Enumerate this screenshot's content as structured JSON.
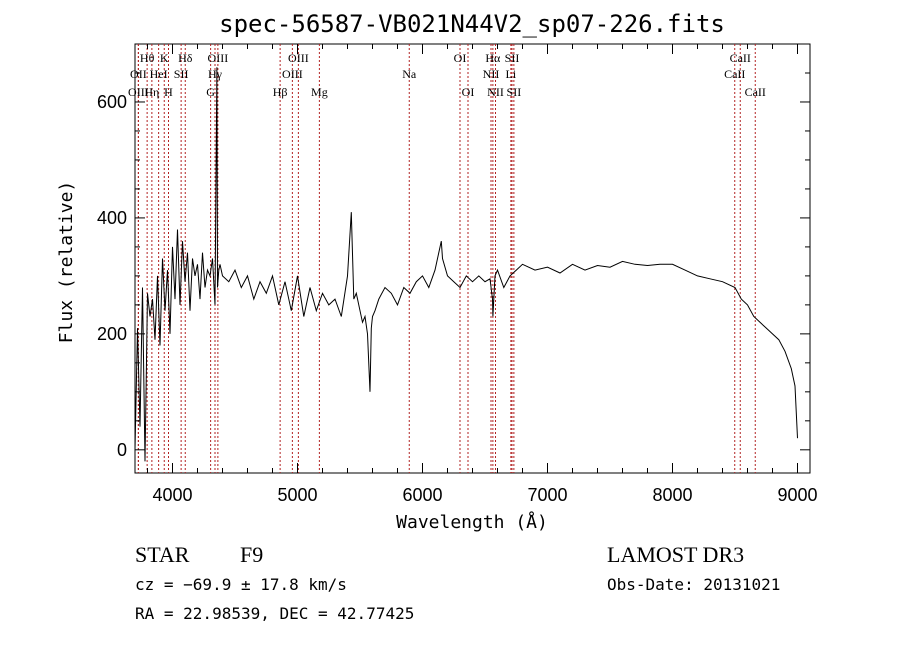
{
  "chart_data": {
    "type": "line",
    "title": "spec-56587-VB021N44V2_sp07-226.fits",
    "xlabel": "Wavelength (Å)",
    "ylabel": "Flux (relative)",
    "xlim": [
      3700,
      9100
    ],
    "ylim": [
      -40,
      700
    ],
    "x_ticks": [
      4000,
      5000,
      6000,
      7000,
      8000,
      9000
    ],
    "y_ticks": [
      0,
      200,
      400,
      600
    ],
    "grid": false,
    "series": [
      {
        "x": [
          3700,
          3720,
          3740,
          3760,
          3780,
          3800,
          3820,
          3840,
          3860,
          3880,
          3900,
          3920,
          3940,
          3960,
          3980,
          4000,
          4020,
          4040,
          4060,
          4080,
          4100,
          4120,
          4140,
          4160,
          4180,
          4200,
          4220,
          4240,
          4260,
          4280,
          4300,
          4320,
          4340,
          4355,
          4360,
          4370,
          4380,
          4400,
          4450,
          4500,
          4550,
          4600,
          4650,
          4700,
          4750,
          4800,
          4850,
          4900,
          4950,
          5000,
          5050,
          5100,
          5150,
          5200,
          5250,
          5300,
          5350,
          5400,
          5430,
          5450,
          5470,
          5500,
          5520,
          5540,
          5560,
          5580,
          5590,
          5600,
          5620,
          5650,
          5700,
          5750,
          5800,
          5850,
          5900,
          5950,
          6000,
          6050,
          6100,
          6150,
          6160,
          6200,
          6250,
          6300,
          6350,
          6400,
          6450,
          6500,
          6540,
          6560,
          6563,
          6580,
          6600,
          6650,
          6700,
          6750,
          6800,
          6900,
          7000,
          7100,
          7200,
          7300,
          7400,
          7500,
          7600,
          7700,
          7800,
          7900,
          8000,
          8100,
          8200,
          8300,
          8400,
          8500,
          8550,
          8600,
          8650,
          8700,
          8750,
          8800,
          8850,
          8900,
          8950,
          8980,
          9000
        ],
        "values": [
          0,
          210,
          40,
          280,
          -20,
          270,
          230,
          260,
          190,
          300,
          180,
          330,
          240,
          310,
          200,
          350,
          260,
          380,
          250,
          360,
          290,
          340,
          240,
          330,
          300,
          320,
          260,
          340,
          280,
          310,
          300,
          330,
          250,
          660,
          280,
          310,
          320,
          300,
          290,
          310,
          280,
          300,
          260,
          290,
          270,
          300,
          250,
          290,
          240,
          300,
          230,
          280,
          240,
          270,
          250,
          260,
          230,
          300,
          410,
          260,
          270,
          240,
          220,
          230,
          200,
          100,
          210,
          230,
          240,
          260,
          280,
          270,
          250,
          280,
          270,
          290,
          300,
          280,
          310,
          360,
          330,
          300,
          290,
          280,
          300,
          290,
          300,
          290,
          295,
          260,
          230,
          300,
          310,
          280,
          300,
          310,
          320,
          310,
          315,
          305,
          320,
          310,
          318,
          315,
          325,
          320,
          318,
          320,
          320,
          310,
          300,
          295,
          290,
          280,
          260,
          250,
          230,
          220,
          210,
          200,
          190,
          170,
          140,
          110,
          20
        ]
      }
    ],
    "spectral_lines": [
      {
        "label": "Hθ",
        "wavelength": 3797,
        "row": 1
      },
      {
        "label": "OII",
        "wavelength": 3727,
        "row": 2
      },
      {
        "label": "OIII",
        "wavelength": 3727,
        "row": 3
      },
      {
        "label": "K",
        "wavelength": 3934,
        "row": 1
      },
      {
        "label": "HeI",
        "wavelength": 3889,
        "row": 2
      },
      {
        "label": "Hη",
        "wavelength": 3835,
        "row": 3
      },
      {
        "label": "Hδ",
        "wavelength": 4102,
        "row": 1
      },
      {
        "label": "SII",
        "wavelength": 4069,
        "row": 2
      },
      {
        "label": "H",
        "wavelength": 3968,
        "row": 3
      },
      {
        "label": "OIII",
        "wavelength": 4363,
        "row": 1
      },
      {
        "label": "Hγ",
        "wavelength": 4340,
        "row": 2
      },
      {
        "label": "G",
        "wavelength": 4305,
        "row": 3
      },
      {
        "label": "OIII",
        "wavelength": 5007,
        "row": 1
      },
      {
        "label": "OIII",
        "wavelength": 4959,
        "row": 2
      },
      {
        "label": "Hβ",
        "wavelength": 4861,
        "row": 3
      },
      {
        "label": "Mg",
        "wavelength": 5175,
        "row": 3
      },
      {
        "label": "Na",
        "wavelength": 5894,
        "row": 2
      },
      {
        "label": "OI",
        "wavelength": 6300,
        "row": 1
      },
      {
        "label": "OI",
        "wavelength": 6364,
        "row": 3
      },
      {
        "label": "Hα",
        "wavelength": 6563,
        "row": 1
      },
      {
        "label": "SII",
        "wavelength": 6716,
        "row": 1
      },
      {
        "label": "NII",
        "wavelength": 6548,
        "row": 2
      },
      {
        "label": "Li",
        "wavelength": 6707,
        "row": 2
      },
      {
        "label": "NII",
        "wavelength": 6584,
        "row": 3
      },
      {
        "label": "SII",
        "wavelength": 6731,
        "row": 3
      },
      {
        "label": "CaII",
        "wavelength": 8542,
        "row": 1
      },
      {
        "label": "CaII",
        "wavelength": 8498,
        "row": 2
      },
      {
        "label": "CaII",
        "wavelength": 8662,
        "row": 3
      }
    ],
    "colors": {
      "spectrum": "#000000",
      "lines": "#b22222",
      "axes": "#000000"
    }
  },
  "info": {
    "class_label": "STAR",
    "subclass": "F9",
    "survey": "LAMOST DR3",
    "cz": "cz = −69.9 ± 17.8 km/s",
    "obs_date": "Obs-Date: 20131021",
    "coords": "RA =  22.98539, DEC =  42.77425"
  }
}
